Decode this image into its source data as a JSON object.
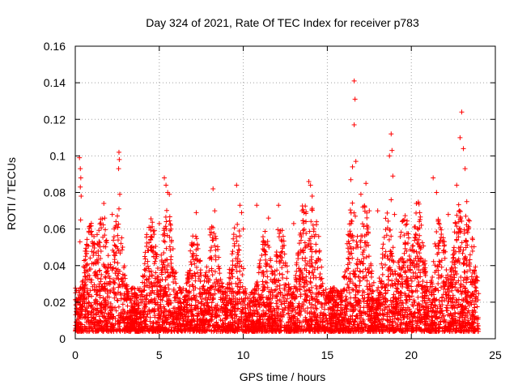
{
  "chart_data": {
    "type": "scatter",
    "title": "Day 324 of 2021, Rate Of TEC Index for receiver p783",
    "xlabel": "GPS time / hours",
    "ylabel": "ROTI / TECUs",
    "xlim": [
      0,
      25
    ],
    "ylim": [
      0,
      0.16
    ],
    "x_ticks": [
      0,
      5,
      10,
      15,
      20,
      25
    ],
    "x_tick_labels": [
      "0",
      "5",
      "10",
      "15",
      "20",
      "25"
    ],
    "y_ticks": [
      0,
      0.02,
      0.04,
      0.06,
      0.08,
      0.1,
      0.12,
      0.14,
      0.16
    ],
    "y_tick_labels": [
      "0",
      "0.02",
      "0.04",
      "0.06",
      "0.08",
      "0.1",
      "0.12",
      "0.14",
      "0.16"
    ],
    "grid": true,
    "marker": "+",
    "marker_color": "#ff0000",
    "data_range_hours": [
      0,
      24
    ],
    "series": [
      {
        "name": "ROTI",
        "points": [
          [
            0.25,
            0.099
          ],
          [
            0.3,
            0.093
          ],
          [
            0.33,
            0.088
          ],
          [
            0.3,
            0.083
          ],
          [
            0.35,
            0.078
          ],
          [
            0.32,
            0.065
          ],
          [
            0.28,
            0.053
          ],
          [
            1.3,
            0.057
          ],
          [
            1.7,
            0.074
          ],
          [
            1.75,
            0.066
          ],
          [
            2.2,
            0.068
          ],
          [
            2.6,
            0.102
          ],
          [
            2.62,
            0.098
          ],
          [
            2.58,
            0.093
          ],
          [
            2.65,
            0.079
          ],
          [
            2.6,
            0.071
          ],
          [
            4.5,
            0.056
          ],
          [
            5.0,
            0.063
          ],
          [
            5.3,
            0.088
          ],
          [
            5.4,
            0.084
          ],
          [
            5.5,
            0.08
          ],
          [
            5.6,
            0.079
          ],
          [
            5.7,
            0.06
          ],
          [
            7.2,
            0.069
          ],
          [
            8.2,
            0.082
          ],
          [
            8.3,
            0.07
          ],
          [
            8.0,
            0.06
          ],
          [
            9.6,
            0.084
          ],
          [
            9.8,
            0.073
          ],
          [
            9.9,
            0.069
          ],
          [
            10.0,
            0.06
          ],
          [
            10.8,
            0.073
          ],
          [
            11.5,
            0.066
          ],
          [
            12.1,
            0.073
          ],
          [
            13.0,
            0.063
          ],
          [
            13.5,
            0.07
          ],
          [
            13.9,
            0.086
          ],
          [
            14.0,
            0.084
          ],
          [
            14.1,
            0.078
          ],
          [
            14.2,
            0.06
          ],
          [
            16.4,
            0.087
          ],
          [
            16.5,
            0.094
          ],
          [
            16.6,
            0.141
          ],
          [
            16.65,
            0.131
          ],
          [
            16.6,
            0.117
          ],
          [
            16.7,
            0.097
          ],
          [
            17.0,
            0.079
          ],
          [
            17.3,
            0.085
          ],
          [
            17.5,
            0.07
          ],
          [
            18.0,
            0.07
          ],
          [
            18.7,
            0.1
          ],
          [
            18.8,
            0.112
          ],
          [
            18.85,
            0.103
          ],
          [
            18.9,
            0.089
          ],
          [
            18.8,
            0.076
          ],
          [
            19.0,
            0.068
          ],
          [
            19.6,
            0.065
          ],
          [
            20.3,
            0.074
          ],
          [
            20.5,
            0.069
          ],
          [
            21.3,
            0.088
          ],
          [
            21.5,
            0.08
          ],
          [
            22.2,
            0.068
          ],
          [
            22.7,
            0.084
          ],
          [
            22.9,
            0.11
          ],
          [
            23.0,
            0.124
          ],
          [
            23.1,
            0.104
          ],
          [
            23.2,
            0.093
          ],
          [
            23.3,
            0.075
          ],
          [
            23.4,
            0.065
          ]
        ]
      }
    ]
  }
}
